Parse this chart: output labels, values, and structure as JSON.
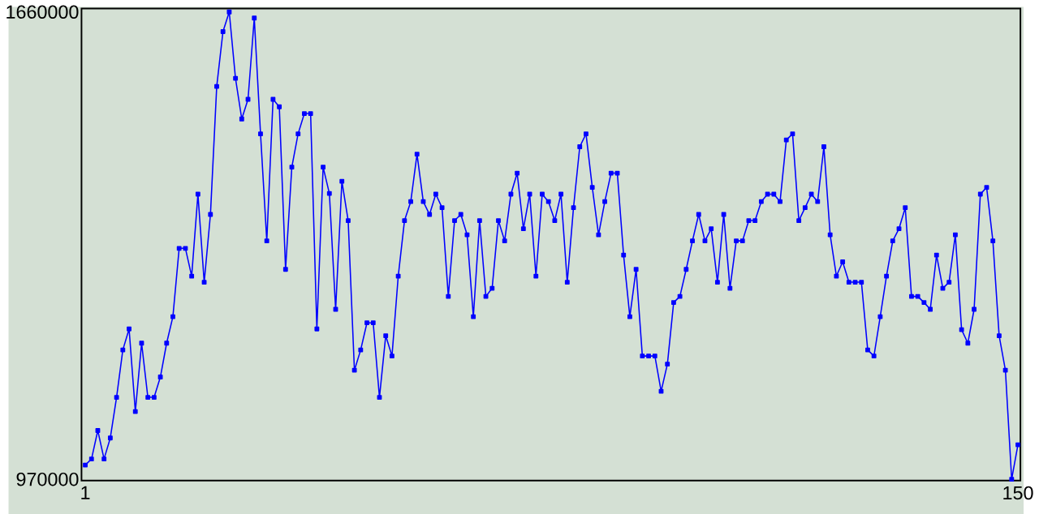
{
  "chart_data": {
    "type": "line",
    "color": "#0000ff",
    "marker": "square",
    "line_style": "solid",
    "xlim": [
      0.4,
      150.4
    ],
    "ylim": [
      968000,
      1665000
    ],
    "xticks": [
      1,
      150
    ],
    "yticks": [
      970000,
      1660000
    ],
    "x": [
      1,
      2,
      3,
      4,
      5,
      6,
      7,
      8,
      9,
      10,
      11,
      12,
      13,
      14,
      15,
      16,
      17,
      18,
      19,
      20,
      21,
      22,
      23,
      24,
      25,
      26,
      27,
      28,
      29,
      30,
      31,
      32,
      33,
      34,
      35,
      36,
      37,
      38,
      39,
      40,
      41,
      42,
      43,
      44,
      45,
      46,
      47,
      48,
      49,
      50,
      51,
      52,
      53,
      54,
      55,
      56,
      57,
      58,
      59,
      60,
      61,
      62,
      63,
      64,
      65,
      66,
      67,
      68,
      69,
      70,
      71,
      72,
      73,
      74,
      75,
      76,
      77,
      78,
      79,
      80,
      81,
      82,
      83,
      84,
      85,
      86,
      87,
      88,
      89,
      90,
      91,
      92,
      93,
      94,
      95,
      96,
      97,
      98,
      99,
      100,
      101,
      102,
      103,
      104,
      105,
      106,
      107,
      108,
      109,
      110,
      111,
      112,
      113,
      114,
      115,
      116,
      117,
      118,
      119,
      120,
      121,
      122,
      123,
      124,
      125,
      126,
      127,
      128,
      129,
      130,
      131,
      132,
      133,
      134,
      135,
      136,
      137,
      138,
      139,
      140,
      141,
      142,
      143,
      144,
      145,
      146,
      147,
      148,
      149,
      150
    ],
    "values": [
      991000,
      1000000,
      1042000,
      1000000,
      1031000,
      1091000,
      1161000,
      1192000,
      1070000,
      1171000,
      1091000,
      1091000,
      1121000,
      1171000,
      1210000,
      1311000,
      1311000,
      1270000,
      1391000,
      1261000,
      1361000,
      1550000,
      1631000,
      1660000,
      1562000,
      1502000,
      1531000,
      1651000,
      1480000,
      1322000,
      1531000,
      1520000,
      1280000,
      1431000,
      1480000,
      1510000,
      1510000,
      1192000,
      1431000,
      1392000,
      1221000,
      1410000,
      1352000,
      1131000,
      1161000,
      1201000,
      1201000,
      1091000,
      1182000,
      1152000,
      1270000,
      1352000,
      1380000,
      1450000,
      1380000,
      1361000,
      1391000,
      1371000,
      1240000,
      1352000,
      1361000,
      1331000,
      1210000,
      1352000,
      1240000,
      1252000,
      1352000,
      1322000,
      1391000,
      1422000,
      1340000,
      1391000,
      1270000,
      1391000,
      1380000,
      1352000,
      1391000,
      1261000,
      1371000,
      1461000,
      1480000,
      1401000,
      1331000,
      1380000,
      1422000,
      1422000,
      1301000,
      1210000,
      1280000,
      1152000,
      1152000,
      1152000,
      1100000,
      1140000,
      1231000,
      1240000,
      1280000,
      1322000,
      1361000,
      1322000,
      1340000,
      1261000,
      1361000,
      1252000,
      1322000,
      1322000,
      1352000,
      1352000,
      1380000,
      1391000,
      1391000,
      1380000,
      1471000,
      1480000,
      1352000,
      1371000,
      1391000,
      1380000,
      1461000,
      1331000,
      1270000,
      1291000,
      1261000,
      1261000,
      1261000,
      1161000,
      1152000,
      1210000,
      1270000,
      1322000,
      1340000,
      1371000,
      1240000,
      1240000,
      1231000,
      1221000,
      1301000,
      1252000,
      1261000,
      1331000,
      1191000,
      1171000,
      1221000,
      1391000,
      1401000,
      1322000,
      1182000,
      1131000,
      970000,
      1021000
    ]
  }
}
